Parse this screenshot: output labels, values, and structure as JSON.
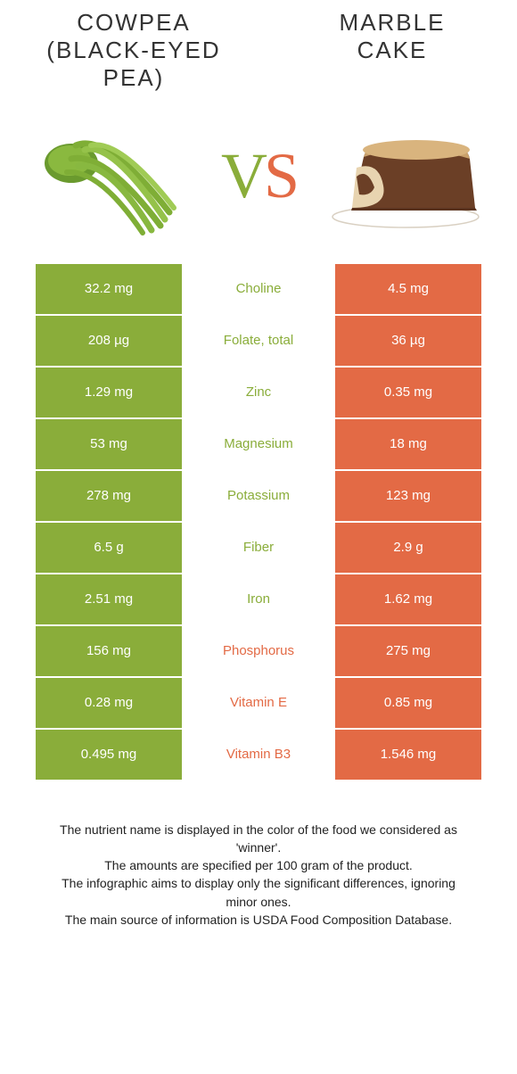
{
  "colors": {
    "green": "#8aad3a",
    "orange": "#e36a45",
    "text": "#333333",
    "footer": "#222222"
  },
  "left": {
    "title": "Cowpea (Black-Eyed Pea)"
  },
  "right": {
    "title": "Marble Cake"
  },
  "vs": {
    "v": "V",
    "s": "S"
  },
  "rows": [
    {
      "left": "32.2 mg",
      "name": "Choline",
      "right": "4.5 mg",
      "winner": "left"
    },
    {
      "left": "208 µg",
      "name": "Folate, total",
      "right": "36 µg",
      "winner": "left"
    },
    {
      "left": "1.29 mg",
      "name": "Zinc",
      "right": "0.35 mg",
      "winner": "left"
    },
    {
      "left": "53 mg",
      "name": "Magnesium",
      "right": "18 mg",
      "winner": "left"
    },
    {
      "left": "278 mg",
      "name": "Potassium",
      "right": "123 mg",
      "winner": "left"
    },
    {
      "left": "6.5 g",
      "name": "Fiber",
      "right": "2.9 g",
      "winner": "left"
    },
    {
      "left": "2.51 mg",
      "name": "Iron",
      "right": "1.62 mg",
      "winner": "left"
    },
    {
      "left": "156 mg",
      "name": "Phosphorus",
      "right": "275 mg",
      "winner": "right"
    },
    {
      "left": "0.28 mg",
      "name": "Vitamin E",
      "right": "0.85 mg",
      "winner": "right"
    },
    {
      "left": "0.495 mg",
      "name": "Vitamin B3",
      "right": "1.546 mg",
      "winner": "right"
    }
  ],
  "footer": {
    "l1": "The nutrient name is displayed in the color of the food we considered as 'winner'.",
    "l2": "The amounts are specified per 100 gram of the product.",
    "l3": "The infographic aims to display only the significant differences, ignoring minor ones.",
    "l4": "The main source of information is USDA Food Composition Database."
  }
}
